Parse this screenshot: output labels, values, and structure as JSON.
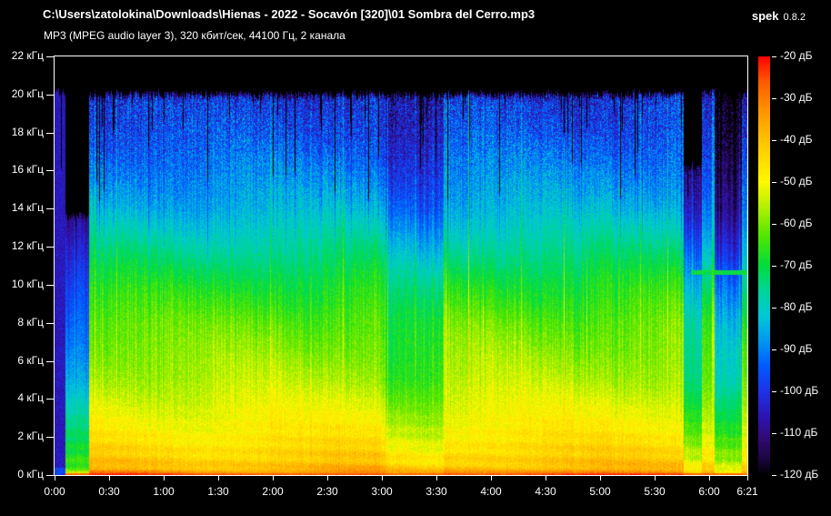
{
  "header": {
    "file_path": "C:\\Users\\zatolokina\\Downloads\\Hienas - 2022 - Socavón [320]\\01 Sombra del Cerro.mp3",
    "app_name": "spek",
    "app_version": "0.8.2",
    "format_info": "MP3 (MPEG audio layer 3), 320 кбит/сек, 44100 Гц, 2 канала"
  },
  "chart_data": {
    "type": "heatmap",
    "subtype": "audio-spectrogram",
    "title": "C:\\Users\\zatolokina\\Downloads\\Hienas - 2022 - Socavón [320]\\01 Sombra del Cerro.mp3",
    "x_axis": {
      "unit": "min:sec",
      "range_seconds": [
        0,
        381
      ],
      "ticks": [
        {
          "label": "0:00",
          "sec": 0
        },
        {
          "label": "0:30",
          "sec": 30
        },
        {
          "label": "1:00",
          "sec": 60
        },
        {
          "label": "1:30",
          "sec": 90
        },
        {
          "label": "2:00",
          "sec": 120
        },
        {
          "label": "2:30",
          "sec": 150
        },
        {
          "label": "3:00",
          "sec": 180
        },
        {
          "label": "3:30",
          "sec": 210
        },
        {
          "label": "4:00",
          "sec": 240
        },
        {
          "label": "4:30",
          "sec": 270
        },
        {
          "label": "5:00",
          "sec": 300
        },
        {
          "label": "5:30",
          "sec": 330
        },
        {
          "label": "6:00",
          "sec": 360
        },
        {
          "label": "6:21",
          "sec": 381
        }
      ]
    },
    "y_axis": {
      "unit": "кГц",
      "range_khz": [
        0,
        22
      ],
      "ticks": [
        {
          "label": "22 кГц",
          "khz": 22
        },
        {
          "label": "20 кГц",
          "khz": 20
        },
        {
          "label": "18 кГц",
          "khz": 18
        },
        {
          "label": "16 кГц",
          "khz": 16
        },
        {
          "label": "14 кГц",
          "khz": 14
        },
        {
          "label": "12 кГц",
          "khz": 12
        },
        {
          "label": "10 кГц",
          "khz": 10
        },
        {
          "label": "8 кГц",
          "khz": 8
        },
        {
          "label": "6 кГц",
          "khz": 6
        },
        {
          "label": "4 кГц",
          "khz": 4
        },
        {
          "label": "2 кГц",
          "khz": 2
        },
        {
          "label": "0 кГц",
          "khz": 0
        }
      ]
    },
    "legend": {
      "unit": "дБ",
      "range_db": [
        -20,
        -120
      ],
      "ticks": [
        {
          "label": "-20 дБ",
          "db": -20
        },
        {
          "label": "-30 дБ",
          "db": -30
        },
        {
          "label": "-40 дБ",
          "db": -40
        },
        {
          "label": "-50 дБ",
          "db": -50
        },
        {
          "label": "-60 дБ",
          "db": -60
        },
        {
          "label": "-70 дБ",
          "db": -70
        },
        {
          "label": "-80 дБ",
          "db": -80
        },
        {
          "label": "-90 дБ",
          "db": -90
        },
        {
          "label": "-100 дБ",
          "db": -100
        },
        {
          "label": "-110 дБ",
          "db": -110
        },
        {
          "label": "-120 дБ",
          "db": -120
        }
      ]
    },
    "colormap": [
      [
        -20,
        "#ff0000"
      ],
      [
        -26,
        "#ff5a00"
      ],
      [
        -33,
        "#ff9400"
      ],
      [
        -41,
        "#ffc800"
      ],
      [
        -50,
        "#fff800"
      ],
      [
        -56,
        "#b4f000"
      ],
      [
        -63,
        "#50e600"
      ],
      [
        -70,
        "#00dc3c"
      ],
      [
        -76,
        "#00d49b"
      ],
      [
        -82,
        "#00c8d7"
      ],
      [
        -88,
        "#0096f0"
      ],
      [
        -94,
        "#005aff"
      ],
      [
        -100,
        "#1e32e6"
      ],
      [
        -106,
        "#2d14b4"
      ],
      [
        -111,
        "#320a78"
      ],
      [
        -116,
        "#1c0542"
      ],
      [
        -120,
        "#000000"
      ]
    ],
    "freq_profile_db": [
      [
        0.03,
        -26
      ],
      [
        0.1,
        -31
      ],
      [
        0.3,
        -38
      ],
      [
        0.6,
        -41
      ],
      [
        1,
        -43
      ],
      [
        2,
        -47
      ],
      [
        3,
        -50
      ],
      [
        4,
        -53
      ],
      [
        5,
        -56
      ],
      [
        6,
        -58
      ],
      [
        8,
        -62
      ],
      [
        10,
        -68
      ],
      [
        12,
        -76
      ],
      [
        14,
        -84
      ],
      [
        16,
        -90
      ],
      [
        18,
        -96
      ],
      [
        19.5,
        -99
      ],
      [
        20.1,
        -101
      ],
      [
        22,
        -120
      ]
    ],
    "segments": [
      {
        "t0": 0,
        "t1": 6,
        "mode": "flat",
        "level": -105,
        "cutoff": 20.3
      },
      {
        "t0": 6,
        "t1": 19,
        "atten": 30,
        "w0": 0.85,
        "cutoff": 13.8
      },
      {
        "t0": 19,
        "t1": 182,
        "atten": 0,
        "cutoff": 20.1
      },
      {
        "t0": 182,
        "t1": 214,
        "atten": 9,
        "w0": 0.45,
        "cutoff": 20.1,
        "streaky": 1
      },
      {
        "t0": 214,
        "t1": 346,
        "atten": 0,
        "cutoff": 20.1
      },
      {
        "t0": 346,
        "t1": 356,
        "atten": 18,
        "w0": 0.5,
        "cutoff": 16.4,
        "streaky": 1
      },
      {
        "t0": 356,
        "t1": 363,
        "atten": 5,
        "cutoff": 20.2
      },
      {
        "t0": 363,
        "t1": 378,
        "atten": 24,
        "w0": 0.5,
        "cutoff": 20.2,
        "streaky": 1
      },
      {
        "t0": 378,
        "t1": 381.5,
        "atten": 7,
        "cutoff": 20.2
      }
    ],
    "tones": [
      {
        "t0": 350,
        "t1": 381,
        "khz": 10.65,
        "db": -70
      }
    ],
    "mp3_lowpass_cutoff_khz": 20,
    "noise_seed": 7
  }
}
